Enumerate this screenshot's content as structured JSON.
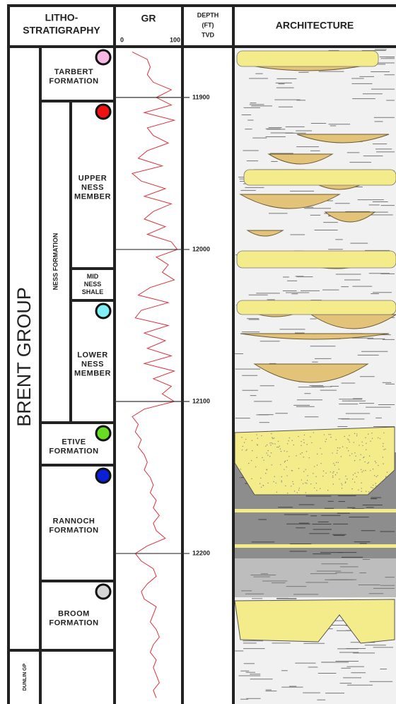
{
  "headers": {
    "litho": [
      "LITHO-",
      "STRATIGRAPHY"
    ],
    "gr": "GR",
    "depth": [
      "DEPTH",
      "(FT)",
      "TVD"
    ],
    "architecture": "ARCHITECTURE"
  },
  "group": "BRENT GROUP",
  "dunlin": "DUNLIN GP",
  "ness_formation": "NESS FORMATION",
  "units": [
    {
      "label": [
        "TARBERT",
        "FORMATION"
      ],
      "color": "#f7b9e4"
    },
    {
      "label": [
        "UPPER",
        "NESS",
        "MEMBER"
      ],
      "color": "#ee1111"
    },
    {
      "label": [
        "MID",
        "NESS",
        "SHALE"
      ]
    },
    {
      "label": [
        "LOWER",
        "NESS",
        "MEMBER"
      ],
      "color": "#7ff0f5"
    },
    {
      "label": [
        "ETIVE",
        "FORMATION"
      ],
      "color": "#66dd22"
    },
    {
      "label": [
        "RANNOCH",
        "FORMATION"
      ],
      "color": "#0a1fd6"
    },
    {
      "label": [
        "BROOM",
        "FORMATION"
      ],
      "color": "#d4d4d4"
    }
  ],
  "gr_log": {
    "color": "#e0303a",
    "xlim": [
      0,
      100
    ],
    "xticks": [
      0,
      100
    ],
    "depth_lim": [
      11867.5,
      12299
    ],
    "depth_ticks": [
      11900,
      12000,
      12100,
      12200
    ],
    "depth": [
      11870,
      11875,
      11880,
      11885,
      11890,
      11895,
      11900,
      11905,
      11910,
      11915,
      11920,
      11925,
      11930,
      11935,
      11940,
      11945,
      11950,
      11955,
      11960,
      11965,
      11970,
      11975,
      11980,
      11985,
      11990,
      11995,
      12000,
      12005,
      12010,
      12015,
      12020,
      12025,
      12030,
      12035,
      12040,
      12045,
      12050,
      12055,
      12060,
      12065,
      12070,
      12075,
      12080,
      12085,
      12090,
      12095,
      12100,
      12105,
      12110,
      12115,
      12120,
      12125,
      12130,
      12135,
      12140,
      12145,
      12150,
      12155,
      12160,
      12165,
      12170,
      12175,
      12180,
      12185,
      12190,
      12195,
      12200,
      12205,
      12210,
      12215,
      12220,
      12225,
      12230,
      12235,
      12240,
      12245,
      12250,
      12255,
      12260,
      12265,
      12270,
      12275,
      12280,
      12285,
      12290,
      12295
    ],
    "values": [
      20,
      45,
      50,
      45,
      55,
      85,
      60,
      85,
      40,
      90,
      45,
      55,
      80,
      45,
      30,
      70,
      20,
      35,
      75,
      40,
      85,
      55,
      40,
      75,
      45,
      85,
      95,
      60,
      80,
      70,
      90,
      50,
      30,
      80,
      35,
      25,
      80,
      40,
      75,
      45,
      85,
      40,
      90,
      55,
      85,
      70,
      90,
      40,
      20,
      30,
      25,
      35,
      30,
      40,
      45,
      40,
      50,
      55,
      50,
      60,
      55,
      65,
      55,
      60,
      75,
      45,
      25,
      35,
      55,
      60,
      45,
      35,
      40,
      60,
      55,
      50,
      60,
      65,
      55,
      50,
      60,
      55,
      60,
      65,
      55,
      60
    ]
  }
}
